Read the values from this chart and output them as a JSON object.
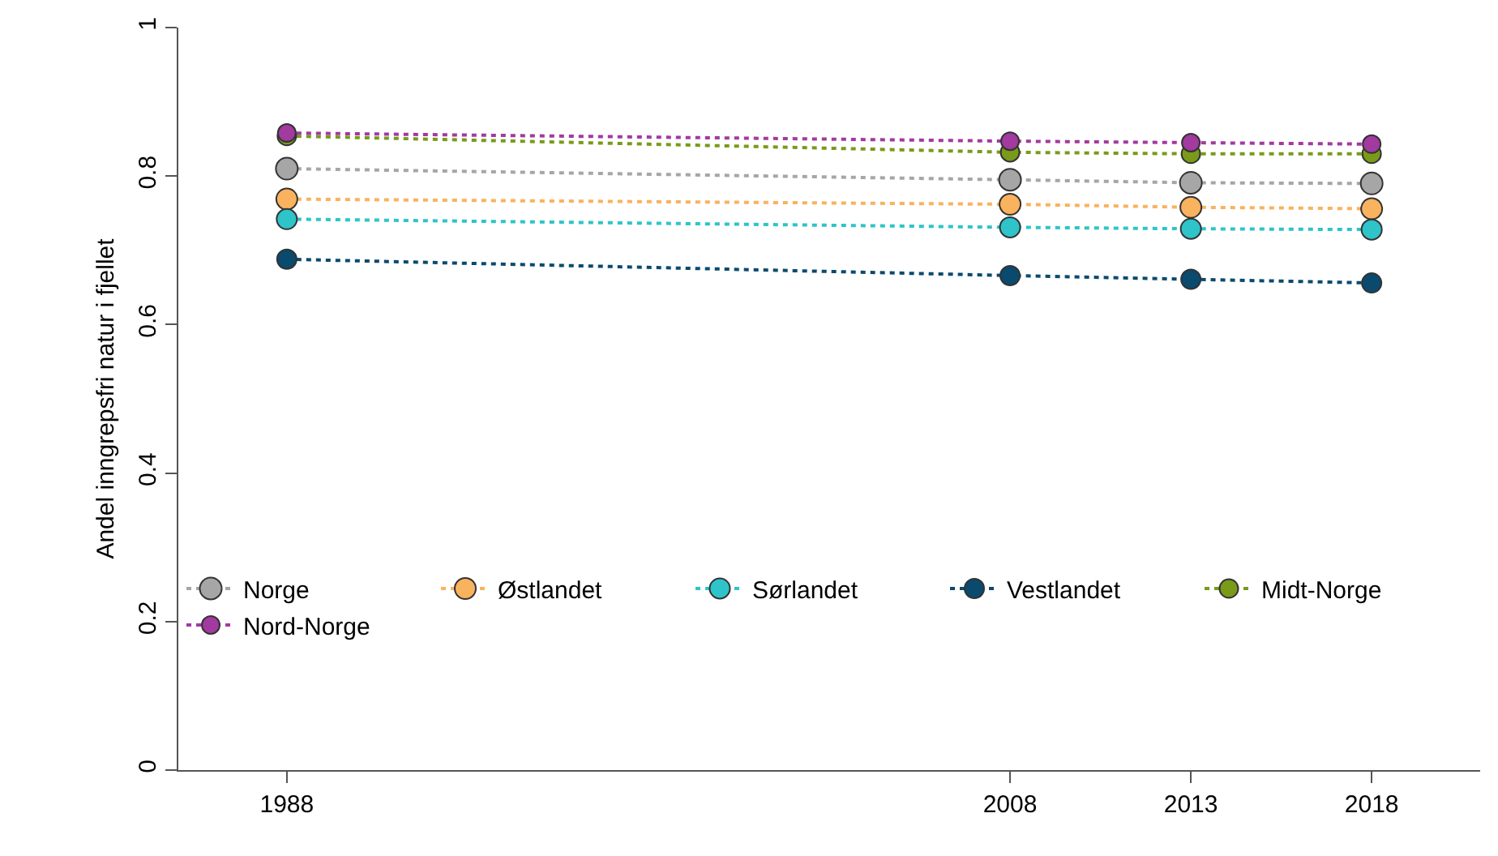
{
  "chart_data": {
    "type": "line",
    "ylabel": "Andel inngrepsfri natur i fjellet",
    "x": [
      1988,
      2008,
      2013,
      2018
    ],
    "xlim": [
      1985,
      2021
    ],
    "xticks": [
      1988,
      2008,
      2013,
      2018
    ],
    "ylim": [
      0,
      1
    ],
    "yticks": [
      0,
      0.2,
      0.4,
      0.6,
      0.8,
      1
    ],
    "grid": false,
    "legend": "bottom",
    "marker": "circle",
    "line_style": "dotted",
    "series": [
      {
        "name": "Norge",
        "color": "#a6a6a6",
        "values": [
          0.81,
          0.795,
          0.791,
          0.79
        ]
      },
      {
        "name": "Østlandet",
        "color": "#f9b25e",
        "values": [
          0.769,
          0.762,
          0.758,
          0.756
        ]
      },
      {
        "name": "Sørlandet",
        "color": "#2ec4c9",
        "values": [
          0.742,
          0.731,
          0.729,
          0.728
        ]
      },
      {
        "name": "Vestlandet",
        "color": "#0a4a6e",
        "values": [
          0.688,
          0.666,
          0.661,
          0.656
        ]
      },
      {
        "name": "Midt-Norge",
        "color": "#7a9a1a",
        "values": [
          0.854,
          0.832,
          0.83,
          0.83
        ]
      },
      {
        "name": "Nord-Norge",
        "color": "#a23a9f",
        "values": [
          0.858,
          0.847,
          0.845,
          0.843
        ]
      }
    ]
  }
}
